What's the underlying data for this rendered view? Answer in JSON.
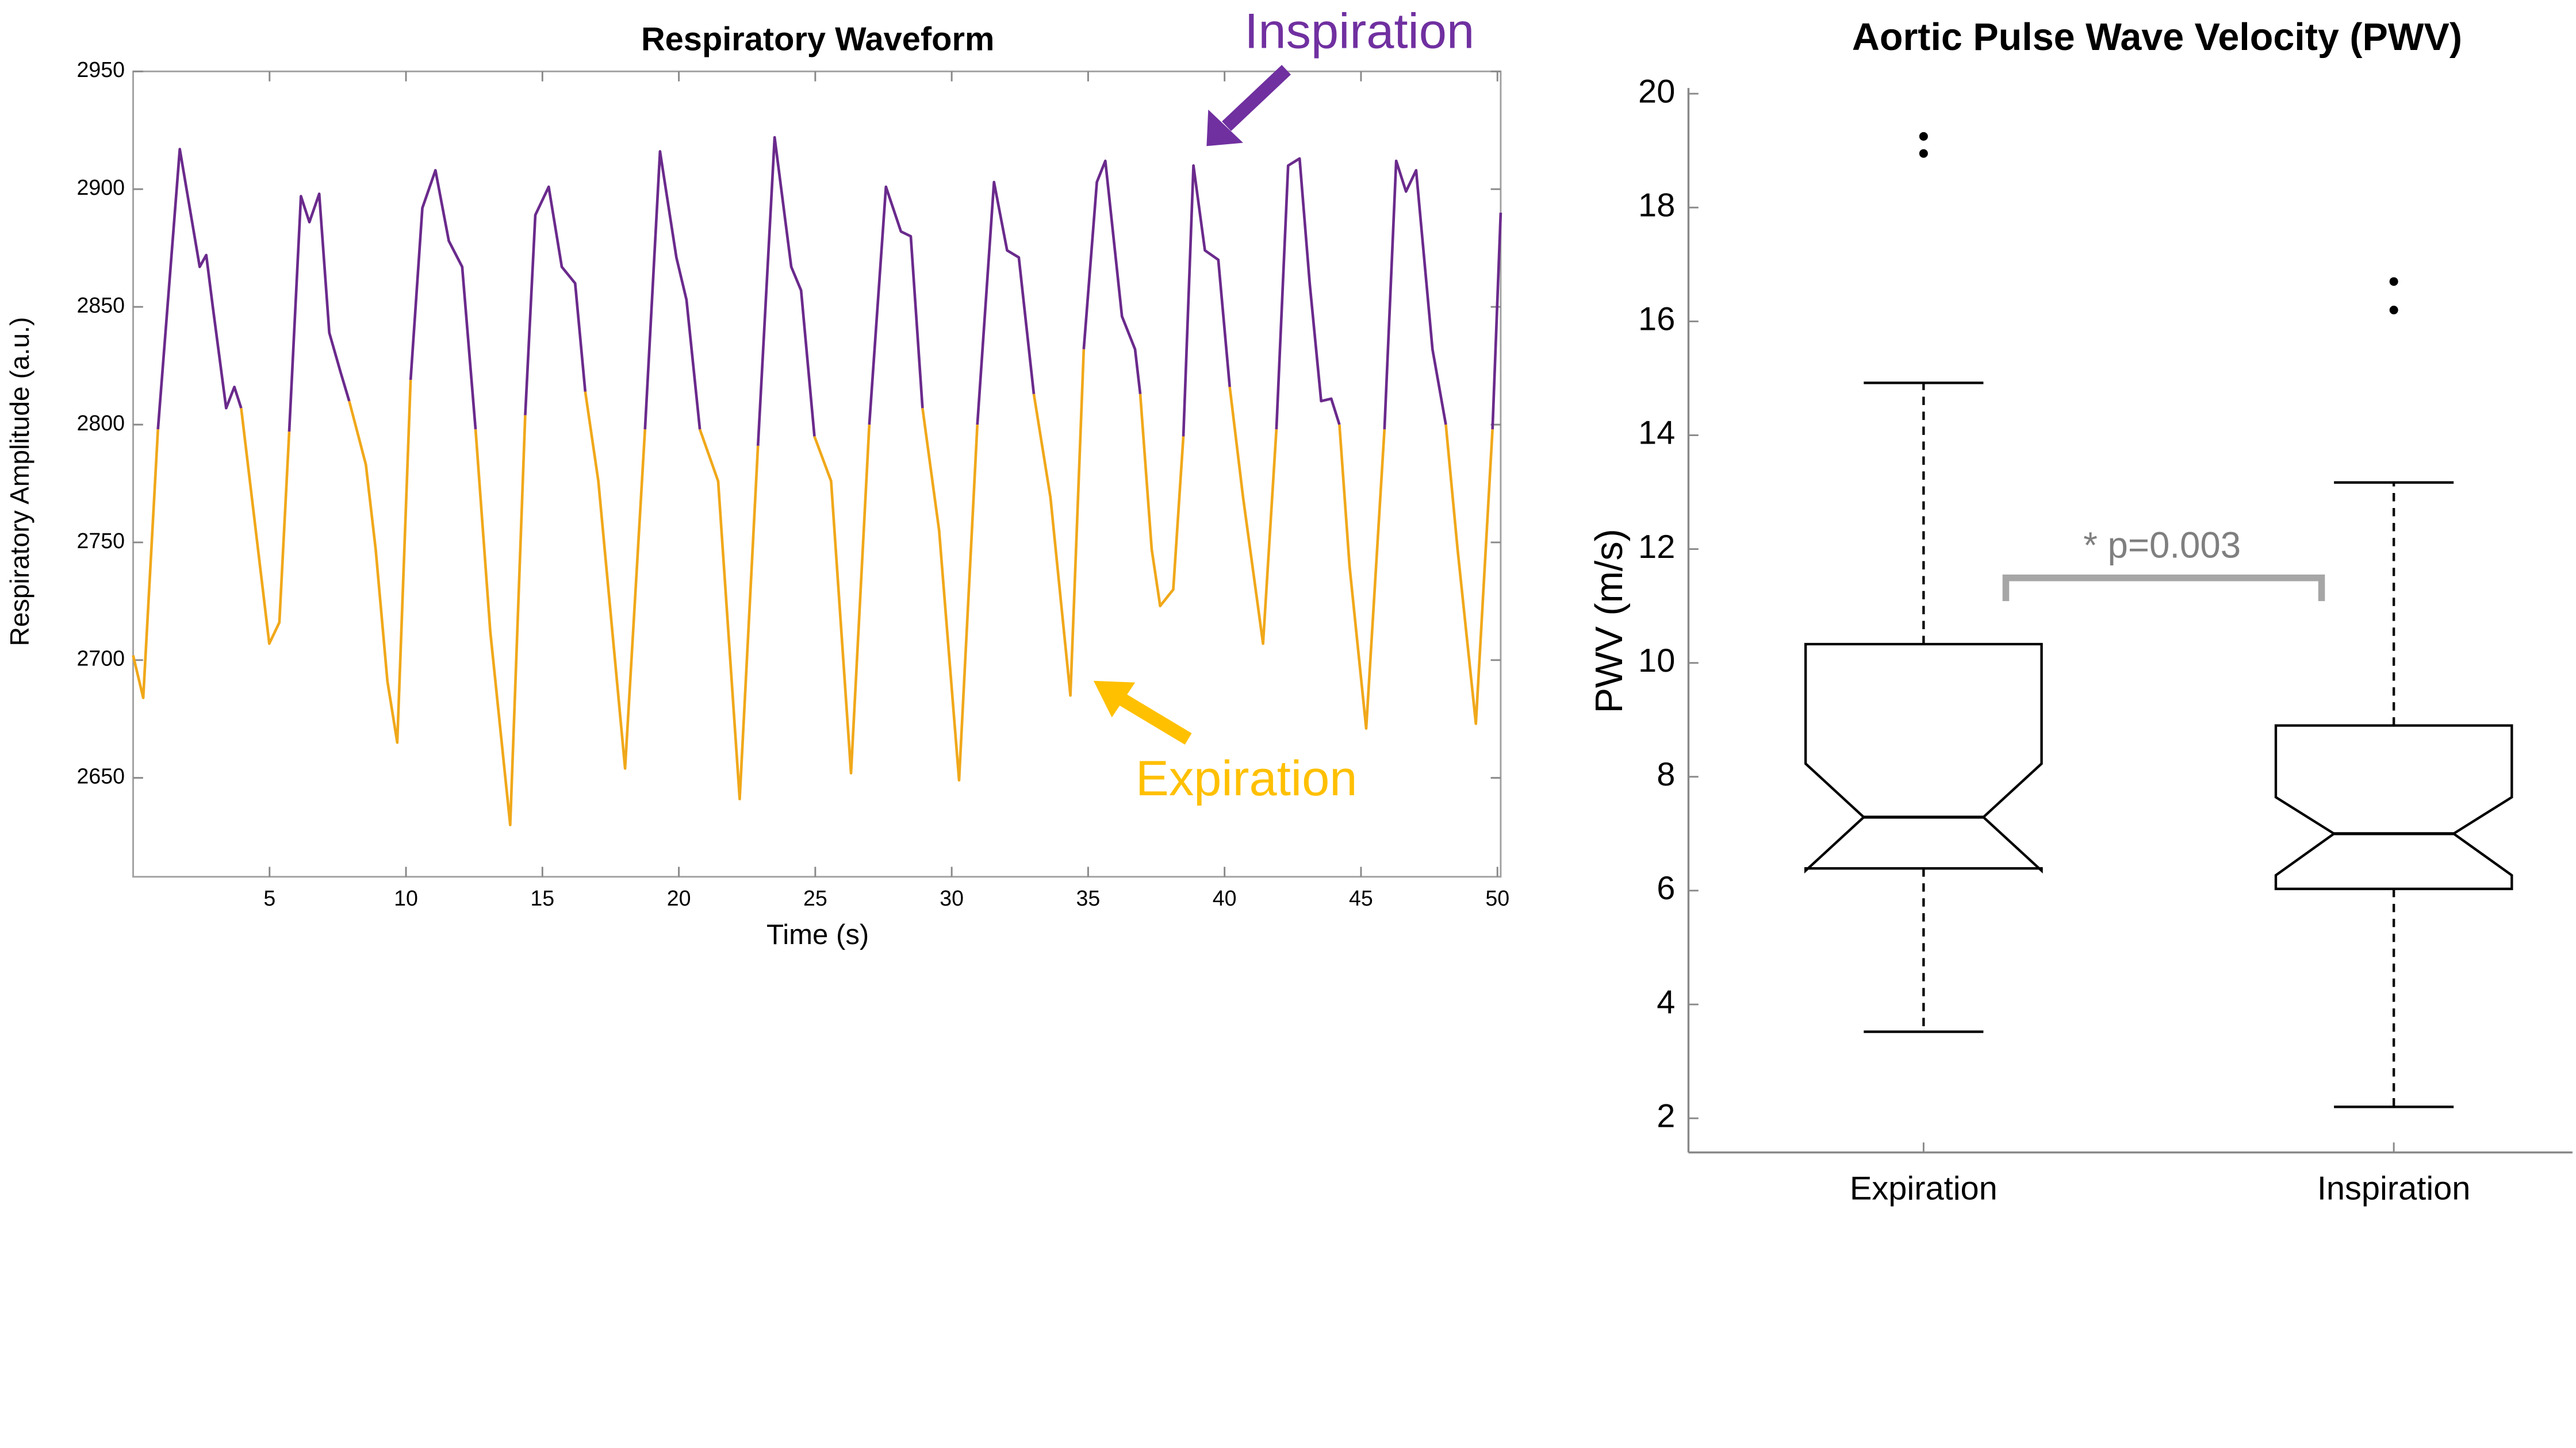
{
  "chart_data": [
    {
      "type": "line",
      "title": "Respiratory Waveform",
      "xlabel": "Time (s)",
      "ylabel": "Respiratory Amplitude (a.u.)",
      "xlim": [
        0,
        50.12
      ],
      "ylim": [
        2608,
        2950
      ],
      "xticks": [
        5,
        10,
        15,
        20,
        25,
        30,
        35,
        40,
        45,
        50
      ],
      "yticks": [
        2650,
        2700,
        2750,
        2800,
        2850,
        2900,
        2950
      ],
      "x": [
        0,
        0.37,
        0.91,
        1.71,
        2.44,
        2.68,
        2.92,
        3.41,
        3.71,
        3.96,
        4.99,
        5.36,
        5.72,
        6.15,
        6.46,
        6.82,
        7.19,
        7.61,
        7.92,
        8.53,
        8.89,
        9.32,
        9.68,
        10.17,
        10.6,
        11.08,
        11.57,
        12.06,
        12.55,
        13.09,
        13.82,
        14.37,
        14.74,
        15.23,
        15.71,
        16.2,
        16.57,
        17.05,
        18.03,
        18.76,
        19.31,
        19.91,
        20.28,
        20.77,
        21.44,
        22.23,
        22.9,
        23.51,
        24.12,
        24.48,
        24.97,
        25.58,
        26.31,
        26.98,
        27.59,
        28.14,
        28.5,
        28.93,
        29.54,
        30.27,
        30.94,
        31.55,
        32.03,
        32.46,
        33.01,
        33.62,
        34.35,
        34.84,
        35.32,
        35.63,
        36.24,
        36.72,
        36.91,
        37.33,
        37.64,
        38.12,
        38.49,
        38.86,
        39.28,
        39.77,
        40.19,
        40.68,
        41.41,
        41.9,
        42.33,
        42.75,
        43.12,
        43.54,
        43.91,
        44.21,
        44.58,
        45.19,
        45.86,
        46.29,
        46.65,
        47.02,
        47.62,
        48.11,
        48.54,
        49.21,
        49.82,
        50.12
      ],
      "series": [
        {
          "color": "#6a2a8c",
          "values": [
            null,
            null,
            2798,
            2917,
            2867,
            2872,
            2850,
            2807,
            2816,
            2807,
            null,
            null,
            2797,
            2897,
            2886,
            2898,
            2839,
            2822,
            2810,
            null,
            null,
            null,
            null,
            2819,
            2892,
            2908,
            2878,
            2867,
            2798,
            null,
            null,
            2804,
            2889,
            2901,
            2867,
            2860,
            2814,
            null,
            null,
            2798,
            2916,
            2871,
            2853,
            2798,
            null,
            null,
            2791,
            2922,
            2867,
            2857,
            2795,
            null,
            null,
            2800,
            2901,
            2882,
            2880,
            2807,
            null,
            null,
            2800,
            2903,
            2874,
            2871,
            2813,
            null,
            null,
            2832,
            2903,
            2912,
            2846,
            2832,
            2813,
            null,
            null,
            null,
            2795,
            2910,
            2874,
            2870,
            2816,
            null,
            null,
            2798,
            2910,
            2913,
            2860,
            2810,
            2811,
            2800,
            null,
            null,
            2798,
            2912,
            2899,
            2908,
            2832,
            2800,
            null,
            null,
            2798,
            2890
          ]
        },
        {
          "color": "#f0a81a",
          "values": [
            2702,
            2684,
            2798,
            null,
            null,
            null,
            null,
            null,
            null,
            2807,
            2707,
            2716,
            2797,
            null,
            null,
            null,
            null,
            null,
            2810,
            2783,
            2747,
            2691,
            2665,
            2819,
            null,
            null,
            null,
            null,
            2798,
            2712,
            2630,
            2804,
            null,
            null,
            null,
            null,
            2814,
            2776,
            2654,
            2798,
            null,
            null,
            null,
            2798,
            2776,
            2641,
            2791,
            null,
            null,
            null,
            2795,
            2776,
            2652,
            2800,
            null,
            null,
            null,
            2807,
            2755,
            2649,
            2800,
            null,
            null,
            null,
            2813,
            2769,
            2685,
            2832,
            null,
            null,
            null,
            null,
            2813,
            2747,
            2723,
            2730,
            2795,
            null,
            null,
            null,
            2816,
            2769,
            2707,
            2798,
            null,
            null,
            null,
            null,
            null,
            2800,
            2740,
            2671,
            2798,
            null,
            null,
            null,
            null,
            2800,
            2747,
            2673,
            2798,
            null
          ]
        }
      ],
      "annotations": [
        {
          "text": "Inspiration",
          "color": "#7030a0"
        },
        {
          "text": "Expiration",
          "color": "#ffc000"
        }
      ]
    },
    {
      "type": "box",
      "title": "Aortic Pulse Wave Velocity (PWV)",
      "ylabel": "PWV (m/s)",
      "categories": [
        "Expiration",
        "Inspiration"
      ],
      "xlim": [
        0.5,
        2.38
      ],
      "ylim": [
        1.4,
        20.1
      ],
      "yticks": [
        2,
        4,
        6,
        8,
        10,
        12,
        14,
        16,
        18,
        20
      ],
      "boxes": [
        {
          "whislo": 3.52,
          "q1": 6.39,
          "notch_lo": 6.35,
          "median": 7.29,
          "notch_hi": 8.23,
          "q3": 10.33,
          "whishi": 14.92,
          "fliers": [
            19.25,
            18.95
          ]
        },
        {
          "whislo": 2.2,
          "q1": 6.03,
          "notch_lo": 6.27,
          "median": 7.0,
          "notch_hi": 7.64,
          "q3": 8.9,
          "whishi": 13.17,
          "fliers": [
            16.7,
            16.2
          ]
        }
      ],
      "annotations": [
        {
          "text": "* p=0.003",
          "color": "#7f7f7f"
        }
      ]
    }
  ]
}
